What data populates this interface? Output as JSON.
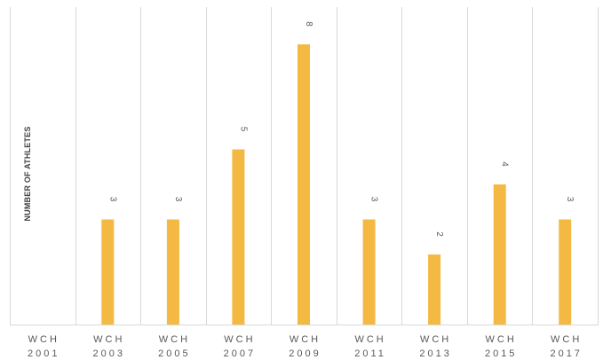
{
  "chart_data": {
    "type": "bar",
    "title": "",
    "ylabel": "NUMBER OF ATHLETES",
    "xlabel": "",
    "categories": [
      [
        "WCH",
        "2001"
      ],
      [
        "WCH",
        "2003"
      ],
      [
        "WCH",
        "2005"
      ],
      [
        "WCH",
        "2007"
      ],
      [
        "WCH",
        "2009"
      ],
      [
        "WCH",
        "2011"
      ],
      [
        "WCH",
        "2013"
      ],
      [
        "WCH",
        "2015"
      ],
      [
        "WCH",
        "2017"
      ]
    ],
    "values": [
      0,
      3,
      3,
      5,
      8,
      3,
      2,
      4,
      3
    ],
    "data_labels": [
      "",
      "3",
      "3",
      "5",
      "8",
      "3",
      "2",
      "4",
      "3"
    ],
    "ylim": [
      0,
      9
    ],
    "grid": "vertical",
    "bar_color": "#F4B942",
    "grid_color": "#D9D9D9"
  }
}
